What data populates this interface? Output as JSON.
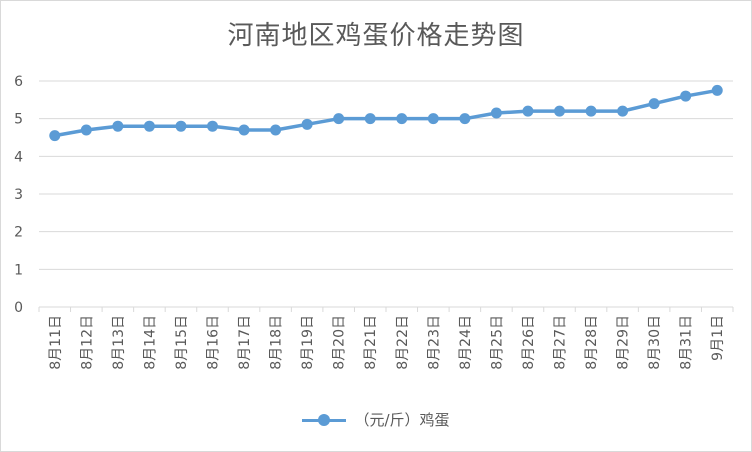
{
  "chart_data": {
    "type": "line",
    "title": "河南地区鸡蛋价格走势图",
    "categories": [
      "8月11日",
      "8月12日",
      "8月13日",
      "8月14日",
      "8月15日",
      "8月16日",
      "8月17日",
      "8月18日",
      "8月19日",
      "8月20日",
      "8月21日",
      "8月22日",
      "8月23日",
      "8月24日",
      "8月25日",
      "8月26日",
      "8月27日",
      "8月28日",
      "8月29日",
      "8月30日",
      "8月31日",
      "9月1日"
    ],
    "series": [
      {
        "name": "（元/斤）鸡蛋",
        "color": "#5b9bd5",
        "values": [
          4.55,
          4.7,
          4.8,
          4.8,
          4.8,
          4.8,
          4.7,
          4.7,
          4.85,
          5.0,
          5.0,
          5.0,
          5.0,
          5.0,
          5.15,
          5.2,
          5.2,
          5.2,
          5.2,
          5.4,
          5.6,
          5.75
        ]
      }
    ],
    "ylim": [
      0,
      6
    ],
    "yticks": [
      "0",
      "1",
      "2",
      "3",
      "4",
      "5",
      "6"
    ],
    "grid": true,
    "legend_position": "bottom",
    "colors": {
      "grid": "#d9d9d9",
      "text": "#595959",
      "line": "#5b9bd5"
    }
  }
}
